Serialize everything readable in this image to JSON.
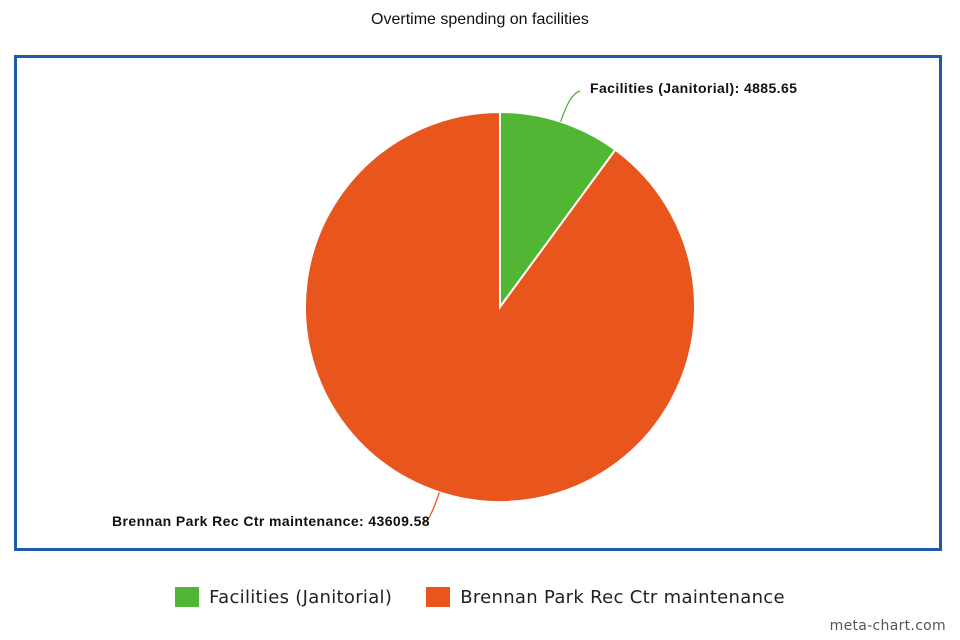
{
  "chart_data": {
    "type": "pie",
    "title": "Overtime spending on facilities",
    "slices": [
      {
        "name": "Facilities (Janitorial)",
        "value": 4885.65,
        "label": "Facilities (Janitorial): 4885.65",
        "color": "#52b635"
      },
      {
        "name": "Brennan Park Rec Ctr maintenance",
        "value": 43609.58,
        "label": "Brennan Park Rec Ctr maintenance: 43609.58",
        "color": "#e8561e"
      }
    ],
    "legend_position": "bottom-center",
    "frame_color": "#1f5aa6"
  },
  "watermark": "meta-chart.com"
}
